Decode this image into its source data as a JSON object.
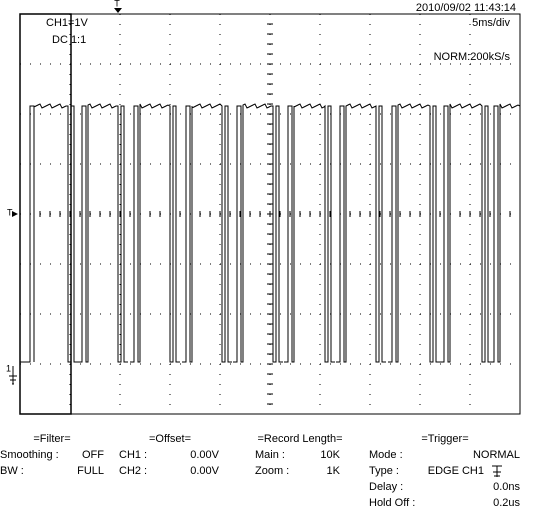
{
  "header": {
    "datetime": "2010/09/02  11:43:14"
  },
  "screen": {
    "channel": "CH1=1V",
    "coupling": "DC  1:1",
    "timebase": "5ms/div",
    "sampling": "NORM:200kS/s"
  },
  "markers": {
    "trigger_time": "T",
    "trigger_level": "T",
    "channel": "1"
  },
  "panels": [
    {
      "title": "=Filter=",
      "rows": [
        {
          "label": "Smoothing :",
          "value": "OFF"
        },
        {
          "label": "BW :",
          "value": "FULL"
        }
      ]
    },
    {
      "title": "=Offset=",
      "rows": [
        {
          "label": "CH1 :",
          "value": "0.00V"
        },
        {
          "label": "CH2 :",
          "value": "0.00V"
        }
      ]
    },
    {
      "title": "=Record Length=",
      "rows": [
        {
          "label": "Main :",
          "value": "10K"
        },
        {
          "label": "Zoom :",
          "value": "1K"
        }
      ]
    },
    {
      "title": "=Trigger=",
      "rows": [
        {
          "label": "Mode :",
          "value": "NORMAL"
        },
        {
          "label": "Type :",
          "value": "EDGE CH1"
        },
        {
          "label": "Delay :",
          "value": "0.0ns"
        },
        {
          "label": "Hold Off :",
          "value": "0.2us"
        }
      ]
    }
  ]
}
